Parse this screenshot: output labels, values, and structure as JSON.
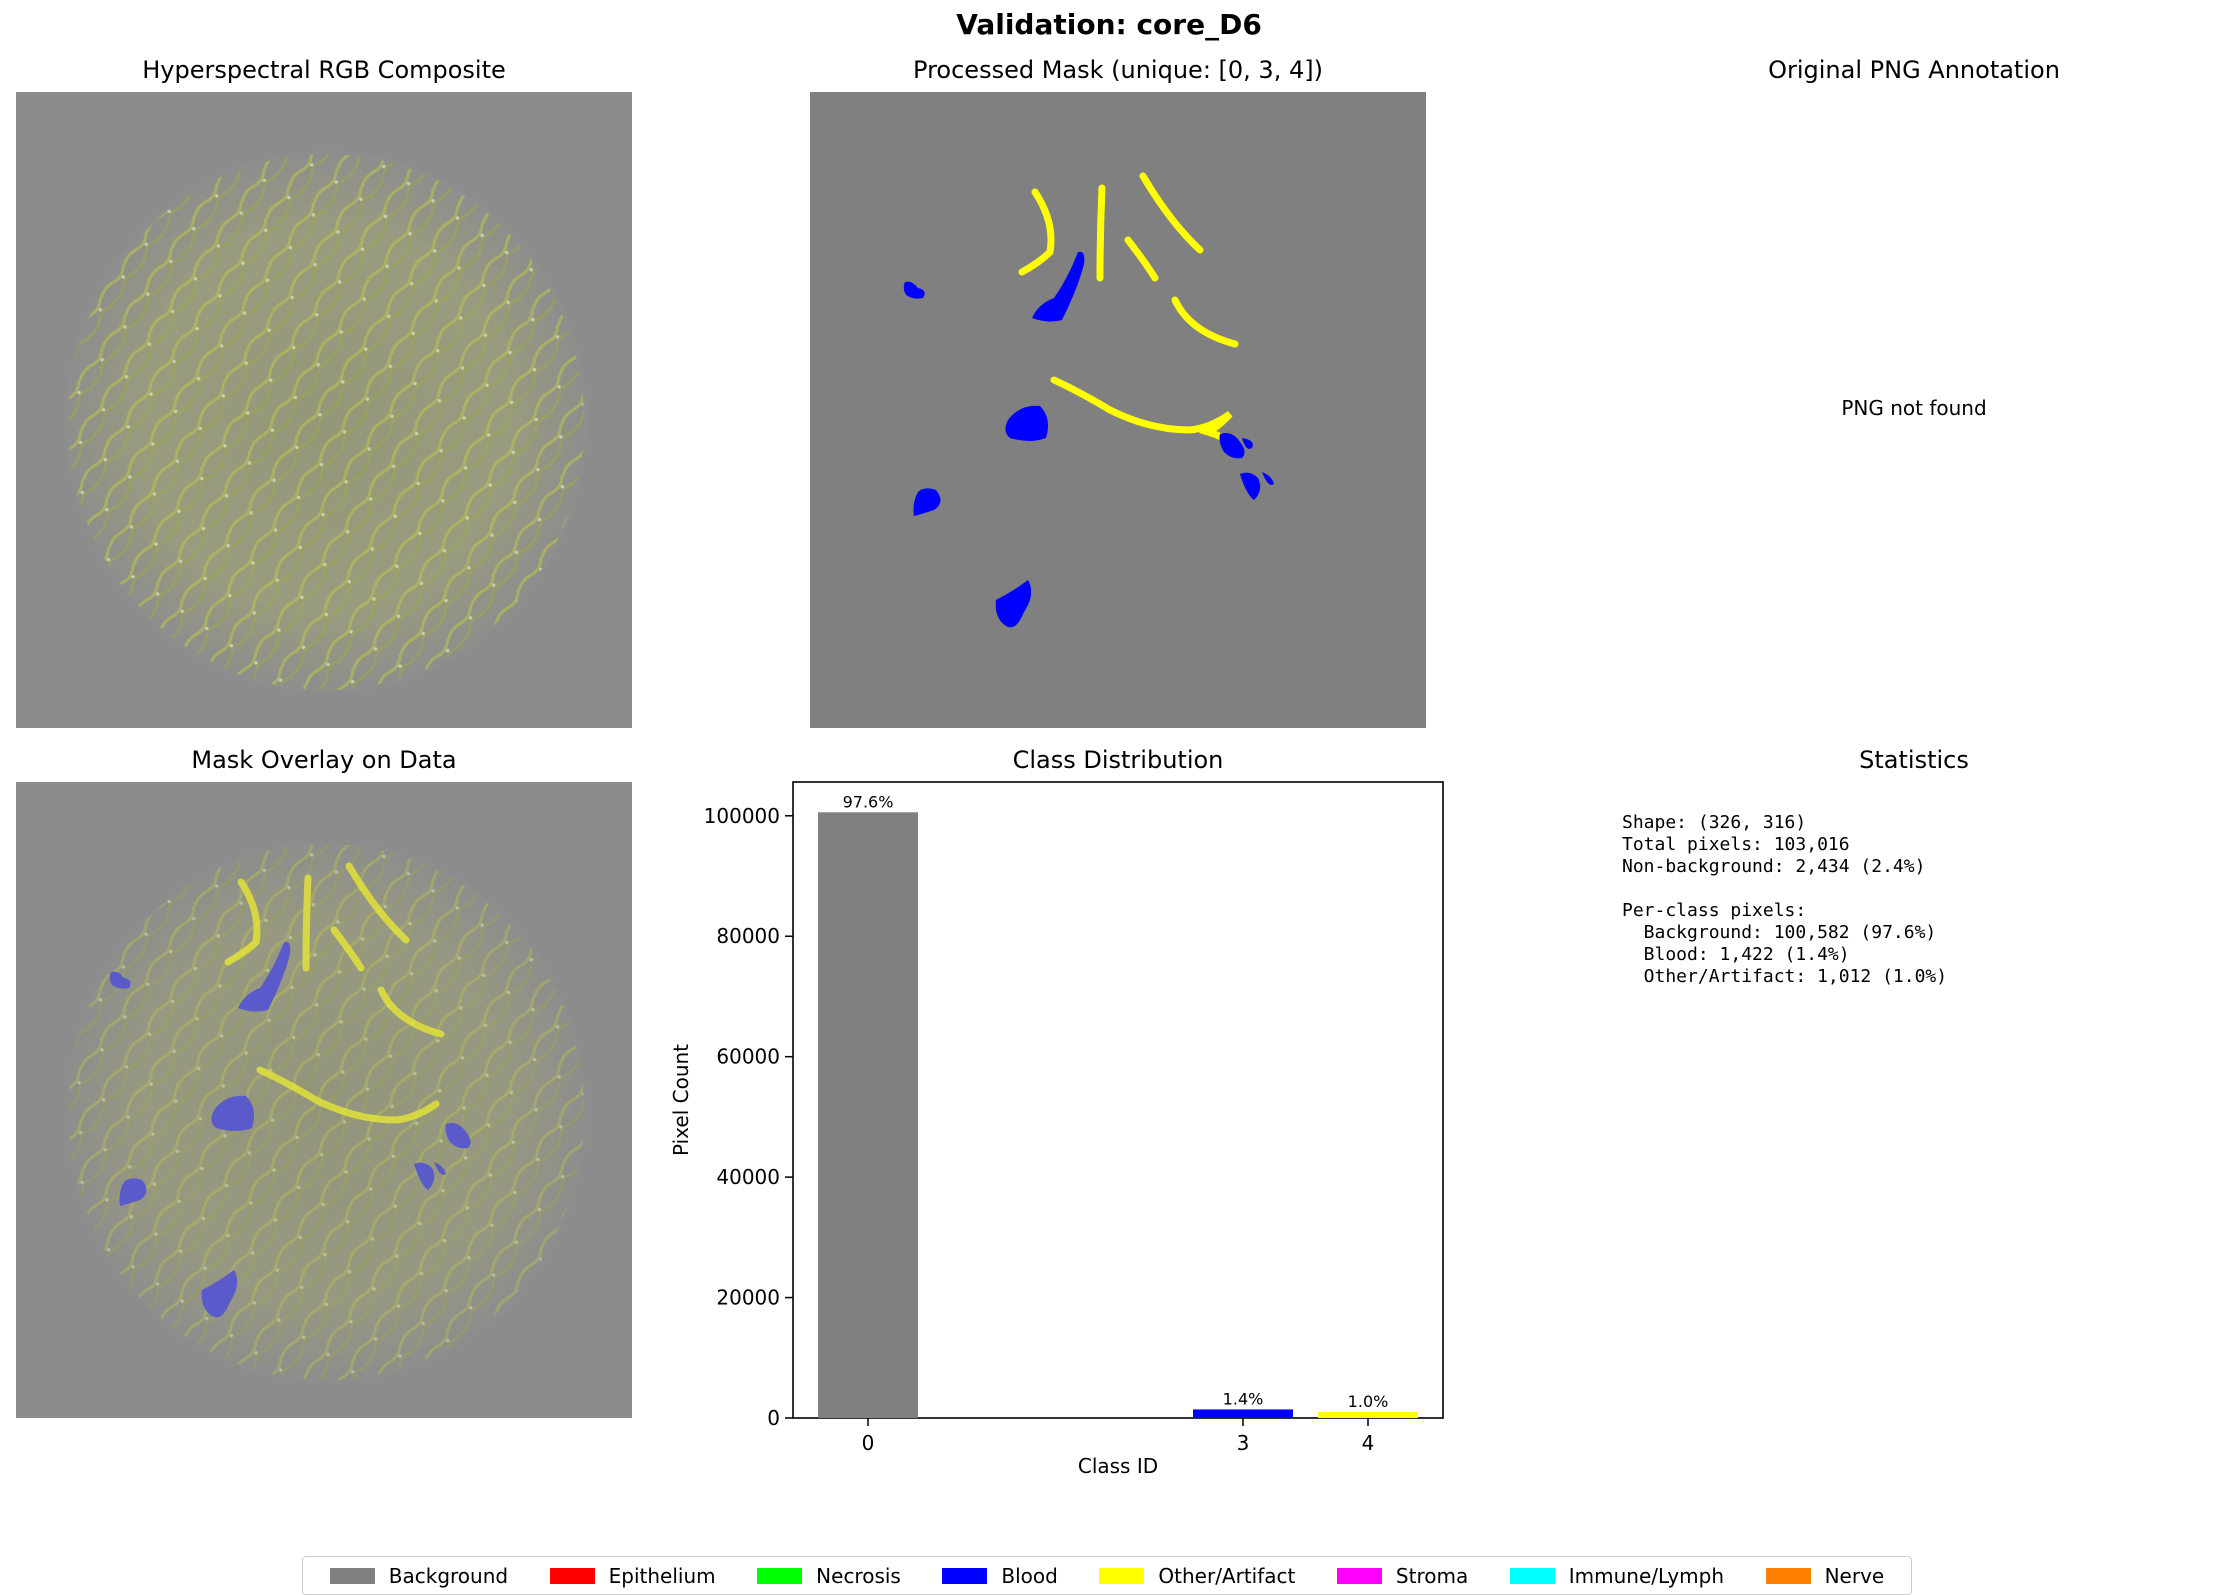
{
  "suptitle": "Validation: core_D6",
  "panels": {
    "rgb_title": "Hyperspectral RGB Composite",
    "mask_title": "Processed Mask (unique: [0, 3, 4])",
    "png_title": "Original PNG Annotation",
    "png_message": "PNG not found",
    "overlay_title": "Mask Overlay on Data",
    "dist_title": "Class Distribution",
    "stats_title": "Statistics"
  },
  "statistics": {
    "lines": [
      "Shape: (326, 316)",
      "Total pixels: 103,016",
      "Non-background: 2,434 (2.4%)",
      "",
      "Per-class pixels:",
      "  Background: 100,582 (97.6%)",
      "  Blood: 1,422 (1.4%)",
      "  Other/Artifact: 1,012 (1.0%)"
    ]
  },
  "colors": {
    "background": "#808080",
    "epithelium": "#ff0000",
    "necrosis": "#00ff00",
    "blood": "#0000ff",
    "other_artifact": "#ffff00",
    "stroma": "#ff00ff",
    "immune_lymph": "#00ffff",
    "nerve": "#ff8000"
  },
  "legend": [
    {
      "label": "Background",
      "color": "#808080"
    },
    {
      "label": "Epithelium",
      "color": "#ff0000"
    },
    {
      "label": "Necrosis",
      "color": "#00ff00"
    },
    {
      "label": "Blood",
      "color": "#0000ff"
    },
    {
      "label": "Other/Artifact",
      "color": "#ffff00"
    },
    {
      "label": "Stroma",
      "color": "#ff00ff"
    },
    {
      "label": "Immune/Lymph",
      "color": "#00ffff"
    },
    {
      "label": "Nerve",
      "color": "#ff8000"
    }
  ],
  "chart_data": {
    "type": "bar",
    "title": "Class Distribution",
    "xlabel": "Class ID",
    "ylabel": "Pixel Count",
    "x": [
      0,
      3,
      4
    ],
    "x_ticks": [
      "0",
      "3",
      "4"
    ],
    "values": [
      100582,
      1422,
      1012
    ],
    "bar_labels": [
      "97.6%",
      "1.4%",
      "1.0%"
    ],
    "bar_colors": [
      "#808080",
      "#0000ff",
      "#ffff00"
    ],
    "xlim": [
      -0.6,
      4.6
    ],
    "ylim": [
      0,
      105611
    ],
    "y_ticks": [
      0,
      20000,
      40000,
      60000,
      80000,
      100000
    ],
    "grid": false
  }
}
